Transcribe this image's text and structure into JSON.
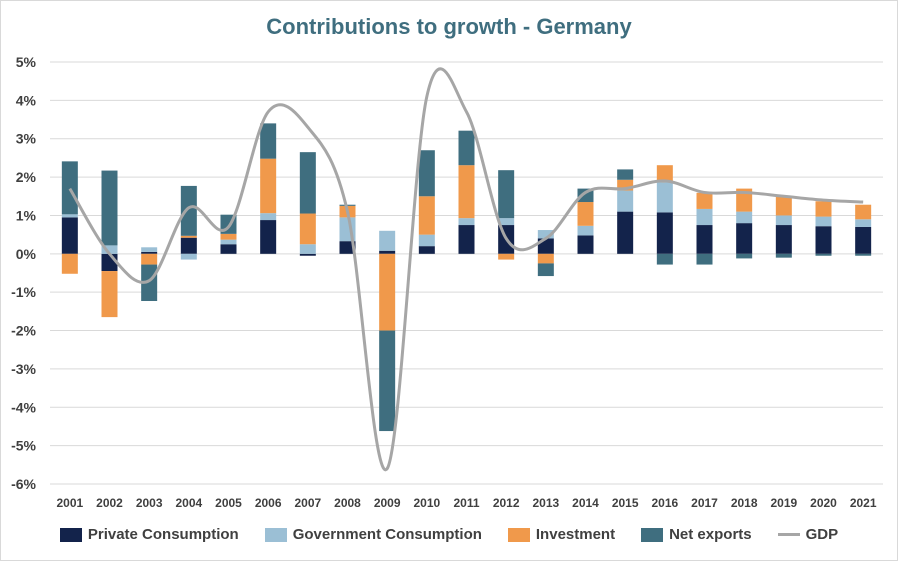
{
  "chart_data": {
    "type": "bar",
    "stacked": true,
    "title": "Contributions to growth - Germany",
    "categories": [
      "2001",
      "2002",
      "2003",
      "2004",
      "2005",
      "2006",
      "2007",
      "2008",
      "2009",
      "2010",
      "2011",
      "2012",
      "2013",
      "2014",
      "2015",
      "2016",
      "2017",
      "2018",
      "2019",
      "2020",
      "2021"
    ],
    "series": [
      {
        "name": "Private Consumption",
        "color": "#13234b",
        "values": [
          0.95,
          -0.45,
          0.05,
          0.42,
          0.25,
          0.88,
          -0.05,
          0.33,
          0.08,
          0.2,
          0.75,
          0.75,
          0.4,
          0.48,
          1.1,
          1.08,
          0.75,
          0.8,
          0.75,
          0.72,
          0.7
        ]
      },
      {
        "name": "Government Consumption",
        "color": "#9bbfd5",
        "values": [
          0.08,
          0.22,
          0.12,
          -0.15,
          0.12,
          0.18,
          0.25,
          0.62,
          0.52,
          0.3,
          0.18,
          0.18,
          0.22,
          0.25,
          0.55,
          0.78,
          0.42,
          0.3,
          0.25,
          0.25,
          0.2
        ]
      },
      {
        "name": "Investment",
        "color": "#f0994b",
        "values": [
          -0.52,
          -1.2,
          -0.28,
          0.05,
          0.15,
          1.42,
          0.8,
          0.3,
          -2.0,
          1.0,
          1.38,
          -0.15,
          -0.25,
          0.62,
          0.28,
          0.45,
          0.42,
          0.6,
          0.52,
          0.4,
          0.38
        ]
      },
      {
        "name": "Net exports",
        "color": "#3f6e7f",
        "values": [
          1.38,
          1.95,
          -0.95,
          1.3,
          0.5,
          0.92,
          1.6,
          0.03,
          -2.62,
          1.2,
          0.9,
          1.25,
          -0.33,
          0.35,
          0.27,
          -0.28,
          -0.28,
          -0.12,
          -0.1,
          -0.05,
          -0.05
        ]
      }
    ],
    "line": {
      "name": "GDP",
      "color": "#a6a6a6",
      "values": [
        1.7,
        0.0,
        -0.7,
        1.2,
        0.7,
        3.7,
        3.3,
        1.1,
        -5.6,
        4.1,
        3.7,
        0.4,
        0.4,
        1.6,
        1.7,
        1.9,
        1.6,
        1.6,
        1.5,
        1.4,
        1.35
      ]
    },
    "ylim": [
      -6,
      5
    ],
    "yticks": [
      5,
      4,
      3,
      2,
      1,
      0,
      -1,
      -2,
      -3,
      -4,
      -5,
      -6
    ],
    "ytick_labels": [
      "5%",
      "4%",
      "3%",
      "2%",
      "1%",
      "0%",
      "-1%",
      "-2%",
      "-3%",
      "-4%",
      "-5%",
      "-6%"
    ],
    "xlabel": "",
    "ylabel": "",
    "grid": true,
    "legend_position": "bottom"
  }
}
